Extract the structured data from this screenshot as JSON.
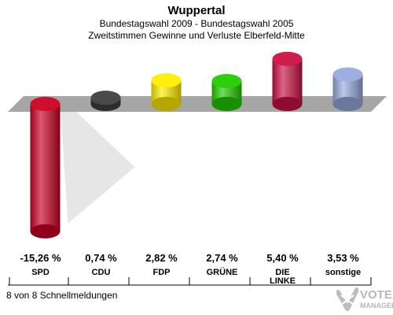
{
  "header": {
    "title": "Wuppertal",
    "subtitle_1": "Bundestagswahl 2009 - Bundestagswahl 2005",
    "subtitle_2": "Zweitstimmen Gewinne und Verluste Elberfeld-Mitte"
  },
  "footer": {
    "status": "8 von 8 Schnellmeldungen"
  },
  "watermark": {
    "line_1": "VOTE",
    "line_2": "MANAGER"
  },
  "colors": {
    "baseline_band": "#a6a6a6",
    "shadow": "#e6e6e6"
  },
  "chart_data": {
    "type": "bar",
    "categories": [
      "SPD",
      "CDU",
      "FDP",
      "GRÜNE",
      "DIE\nLINKE",
      "sonstige"
    ],
    "values": [
      -15.26,
      0.74,
      2.82,
      2.74,
      5.4,
      3.53
    ],
    "value_labels": [
      "-15,26 %",
      "0,74 %",
      "2,82 %",
      "2,74 %",
      "5,40 %",
      "3,53 %"
    ],
    "colors": [
      "#cc0022",
      "#404040",
      "#ffee00",
      "#22cc00",
      "#cc1144",
      "#99aadd"
    ],
    "title": "Wuppertal",
    "xlabel": "",
    "ylabel": "",
    "ylim": [
      -16,
      6
    ],
    "grid": false,
    "legend": "none"
  }
}
